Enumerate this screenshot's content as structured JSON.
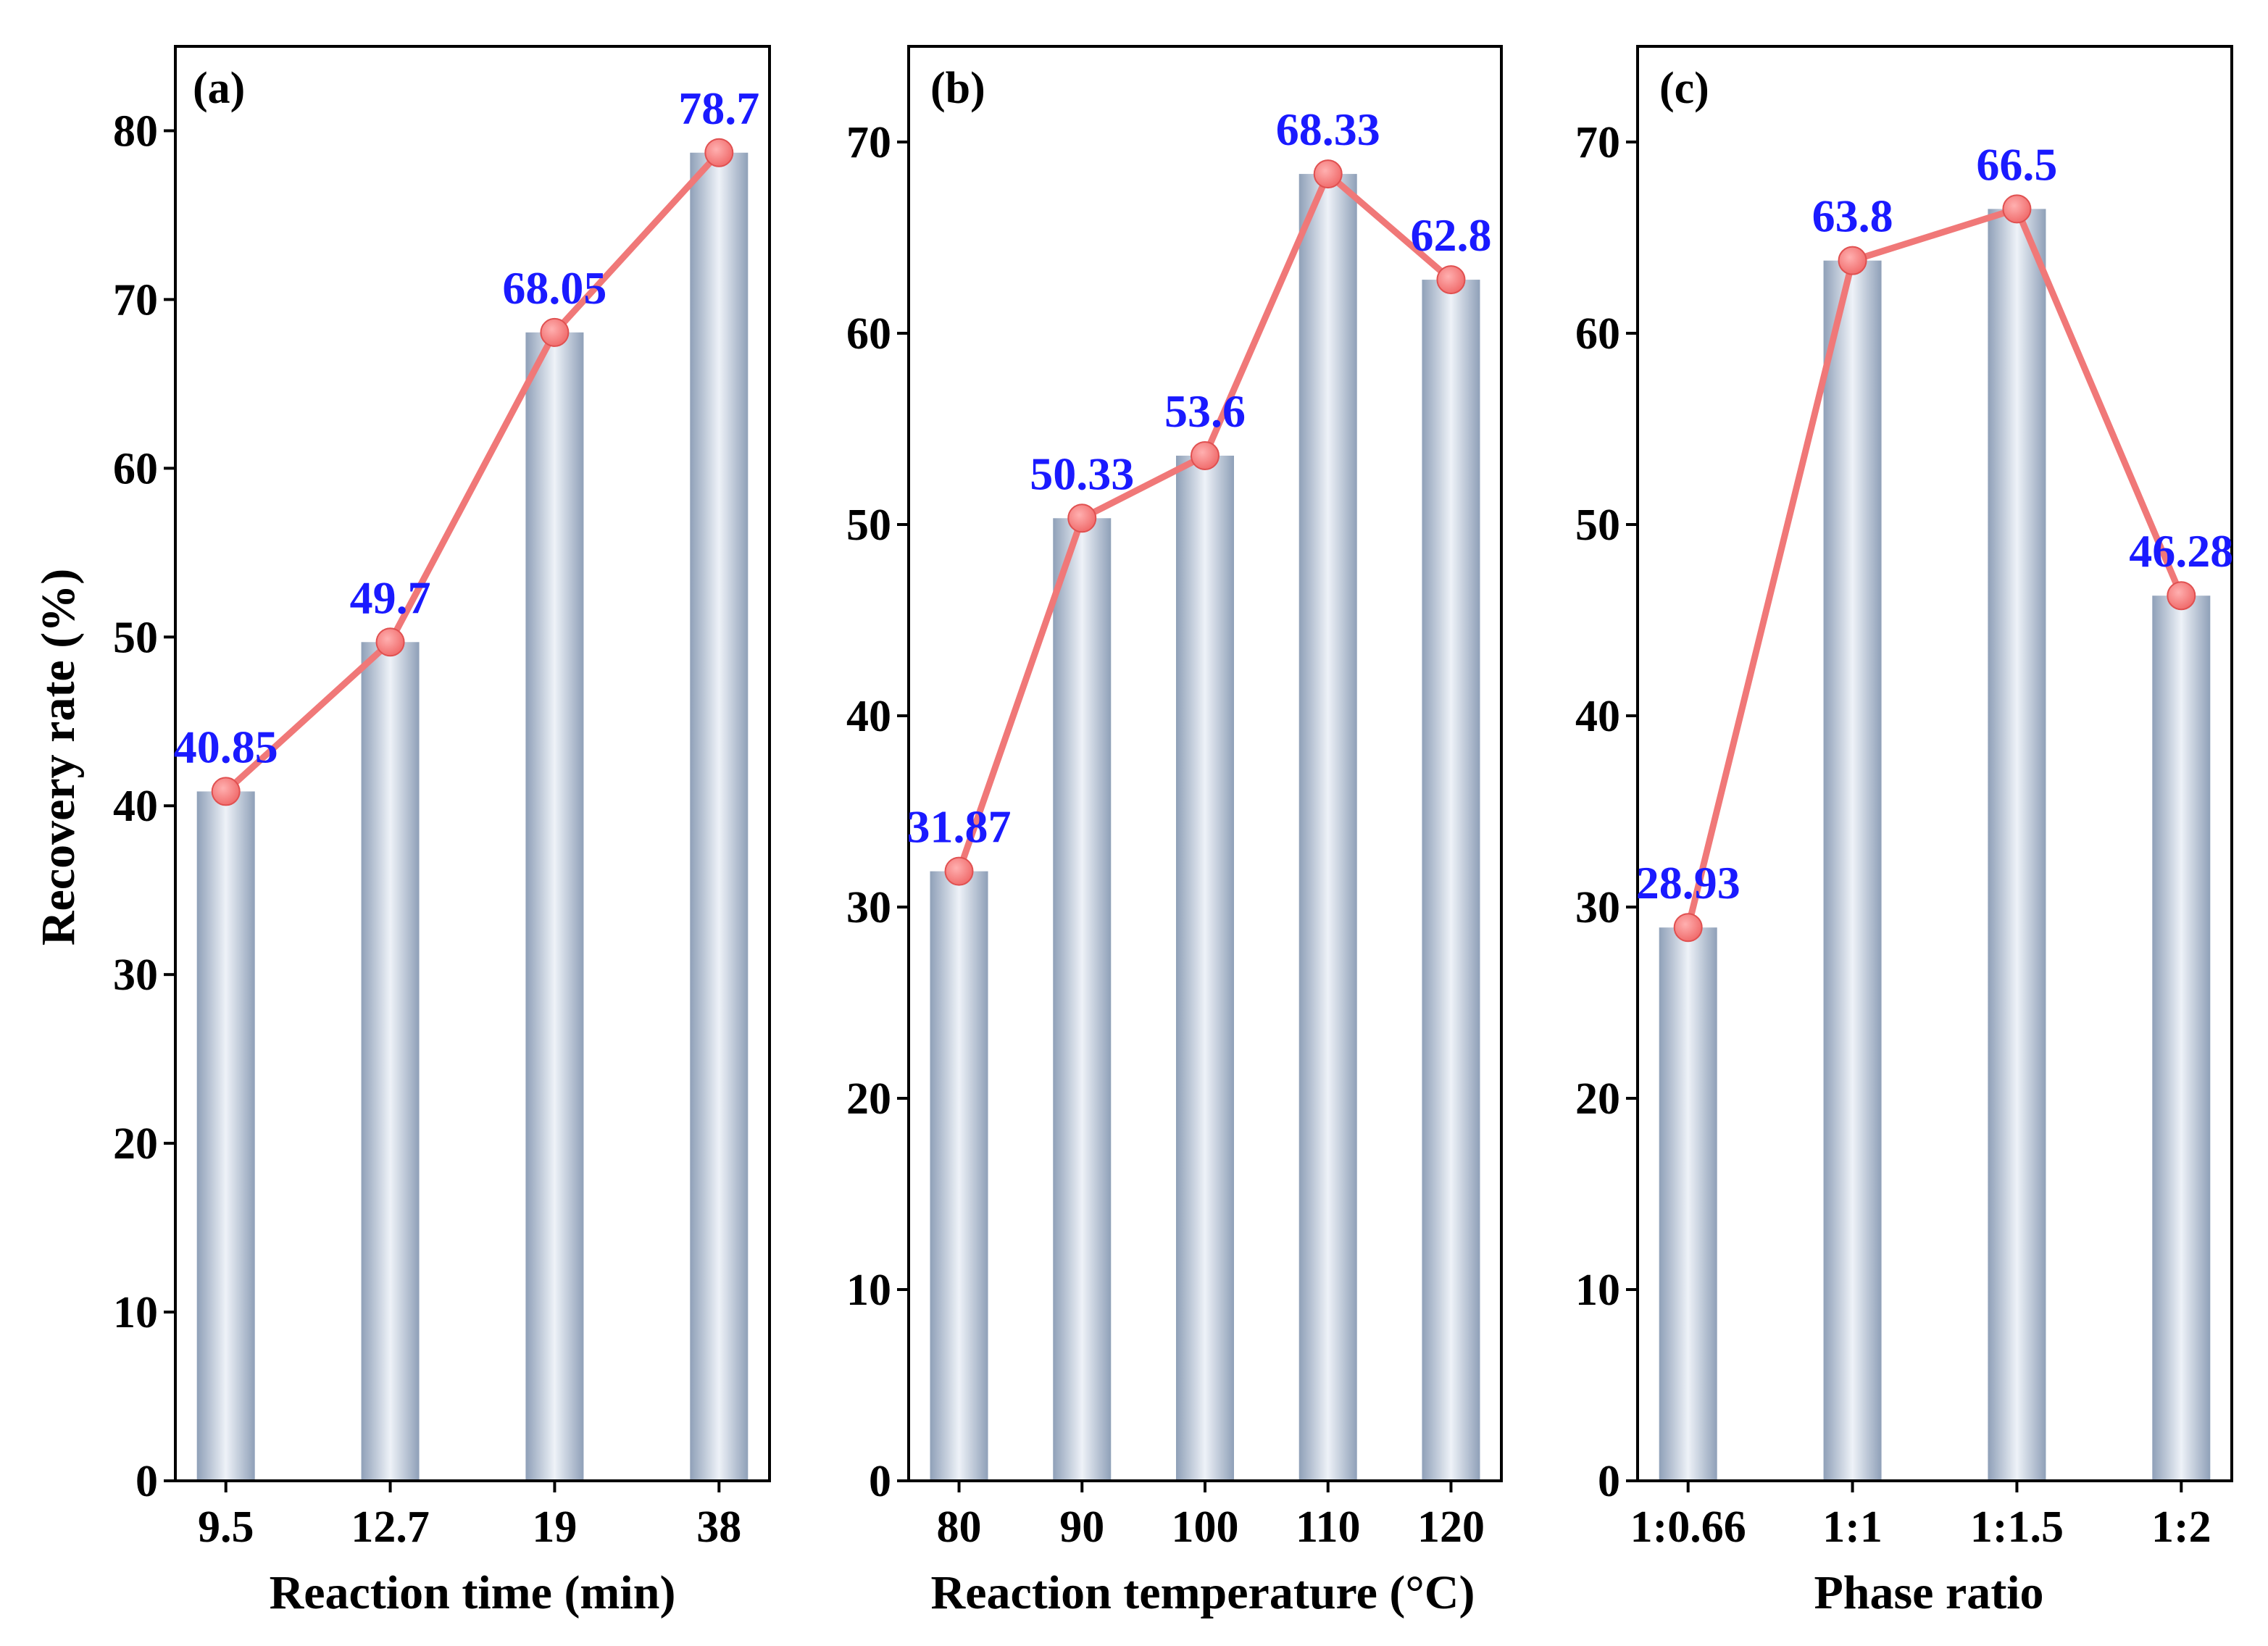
{
  "colors": {
    "line": "#f07878",
    "marker": "#f06a6a",
    "label": "#1a1aff",
    "bar_edge": "#8fa0b8",
    "bar_center": "#eef2f8",
    "axis": "#000000"
  },
  "y_axis_title": "Recovery rate (%)",
  "chart_data": [
    {
      "type": "bar",
      "panel_label": "(a)",
      "title": "",
      "xlabel": "Reaction time (min)",
      "ylabel": "Recovery rate (%)",
      "categories": [
        "9.5",
        "12.7",
        "19",
        "38"
      ],
      "values": [
        40.85,
        49.7,
        68.05,
        78.7
      ],
      "data_labels": [
        "40.85",
        "49.7",
        "68.05",
        "78.7"
      ],
      "ylim": [
        0,
        85
      ],
      "yticks": [
        0,
        10,
        20,
        30,
        40,
        50,
        60,
        70,
        80
      ],
      "overlay": "line-with-markers"
    },
    {
      "type": "bar",
      "panel_label": "(b)",
      "title": "",
      "xlabel": "Reaction temperature (°C)",
      "ylabel": "",
      "categories": [
        "80",
        "90",
        "100",
        "110",
        "120"
      ],
      "values": [
        31.87,
        50.33,
        53.6,
        68.33,
        62.8
      ],
      "data_labels": [
        "31.87",
        "50.33",
        "53.6",
        "68.33",
        "62.8"
      ],
      "ylim": [
        0,
        75
      ],
      "yticks": [
        0,
        10,
        20,
        30,
        40,
        50,
        60,
        70
      ],
      "overlay": "line-with-markers"
    },
    {
      "type": "bar",
      "panel_label": "(c)",
      "title": "",
      "xlabel": "Phase ratio",
      "ylabel": "",
      "categories": [
        "1:0.66",
        "1:1",
        "1:1.5",
        "1:2"
      ],
      "values": [
        28.93,
        63.8,
        66.5,
        46.28
      ],
      "data_labels": [
        "28.93",
        "63.8",
        "66.5",
        "46.28"
      ],
      "ylim": [
        0,
        75
      ],
      "yticks": [
        0,
        10,
        20,
        30,
        40,
        50,
        60,
        70
      ],
      "overlay": "line-with-markers"
    }
  ]
}
